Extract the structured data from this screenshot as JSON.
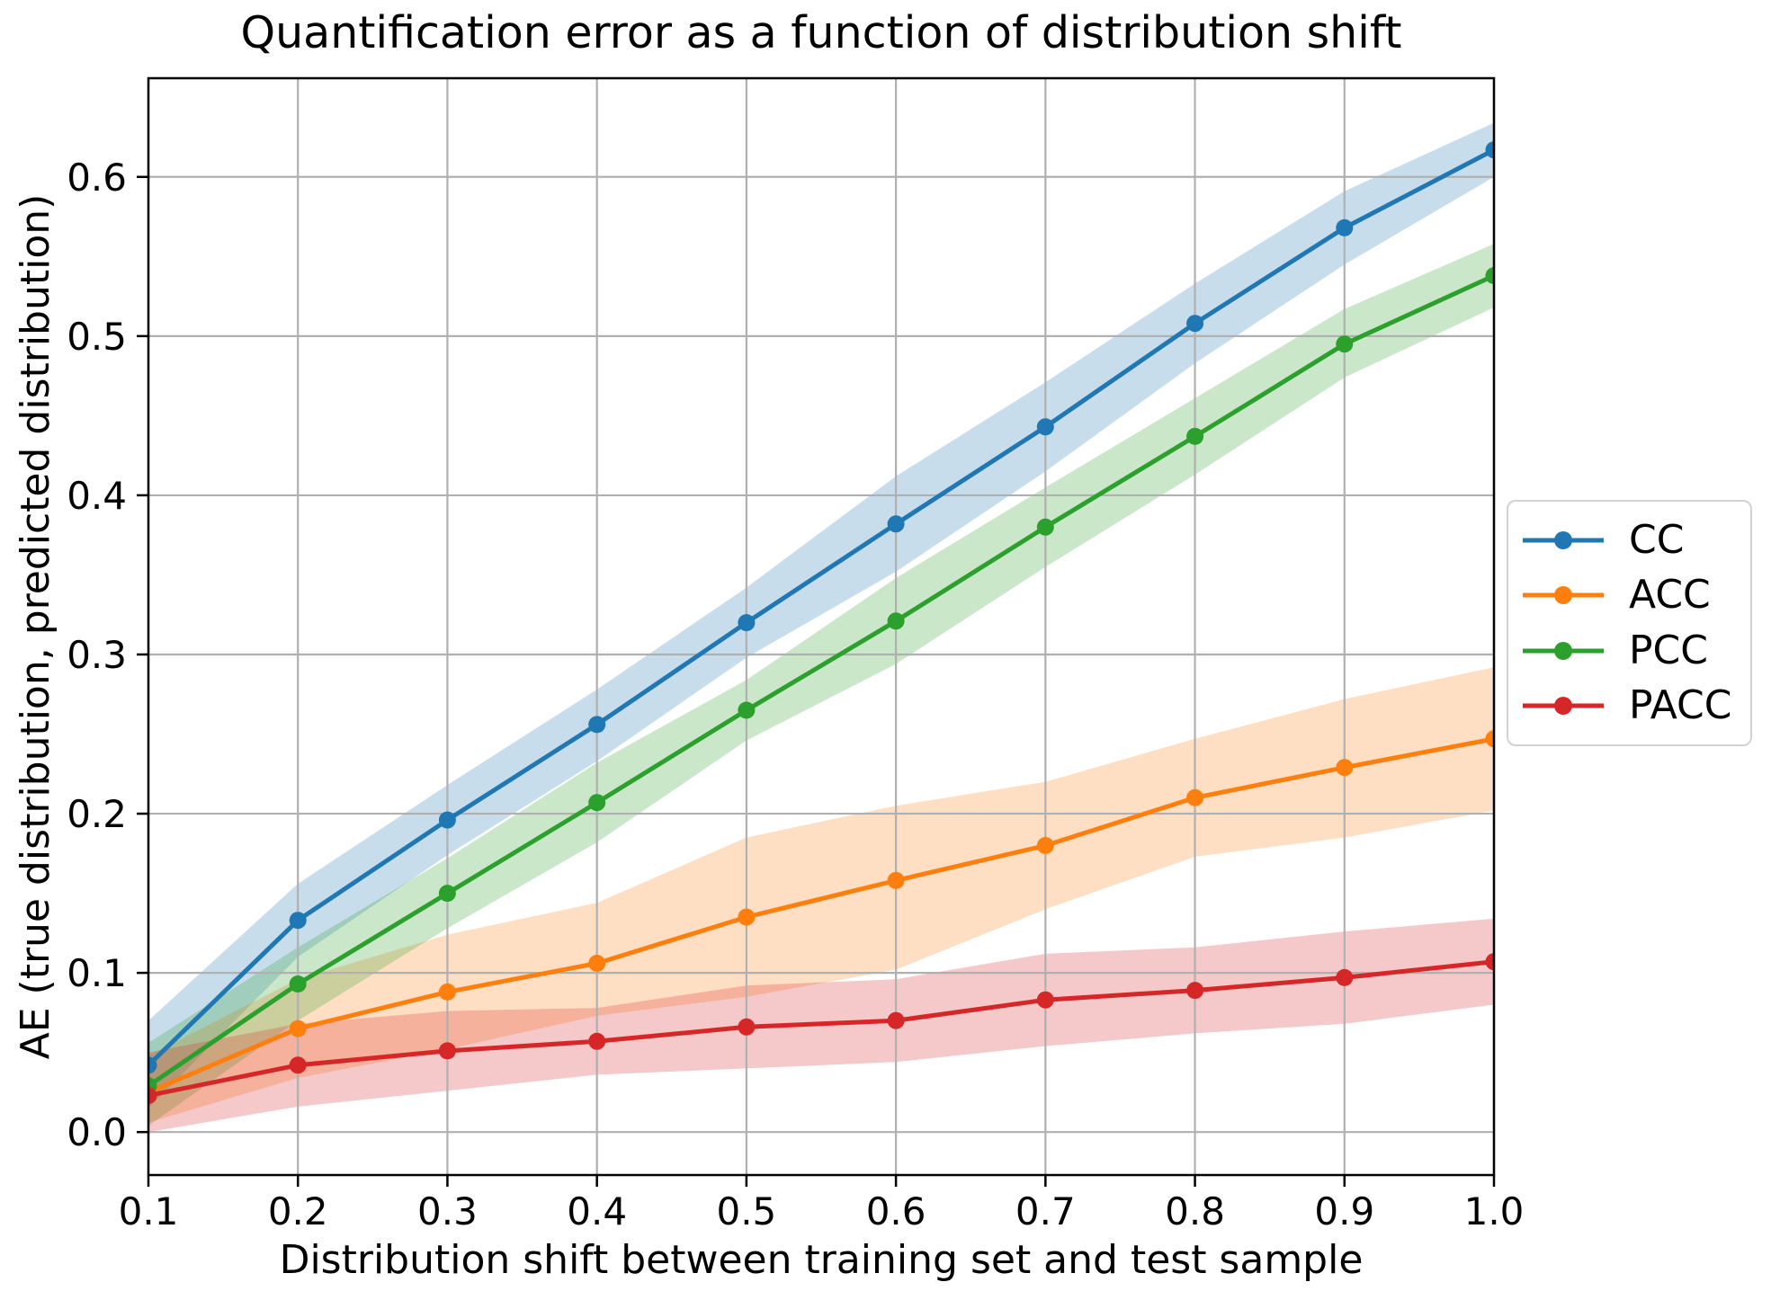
{
  "chart_data": {
    "type": "line",
    "title": "Quantification error as a function of distribution shift",
    "xlabel": "Distribution shift between training set and test sample",
    "ylabel": "AE (true distribution, predicted distribution)",
    "x": [
      0.1,
      0.2,
      0.3,
      0.4,
      0.5,
      0.6,
      0.7,
      0.8,
      0.9,
      1.0
    ],
    "xtick_labels": [
      "0.1",
      "0.2",
      "0.3",
      "0.4",
      "0.5",
      "0.6",
      "0.7",
      "0.8",
      "0.9",
      "1.0"
    ],
    "ytick_values": [
      0.0,
      0.1,
      0.2,
      0.3,
      0.4,
      0.5,
      0.6
    ],
    "ytick_labels": [
      "0.0",
      "0.1",
      "0.2",
      "0.3",
      "0.4",
      "0.5",
      "0.6"
    ],
    "xlim": [
      0.1,
      1.0
    ],
    "ylim": [
      -0.027,
      0.662
    ],
    "grid": true,
    "grid_color": "#b0b0b0",
    "spine_color": "#000000",
    "band_opacity": 0.25,
    "legend_position": "right-outside",
    "series": [
      {
        "name": "CC",
        "color": "#1f77b4",
        "values": [
          0.042,
          0.133,
          0.196,
          0.256,
          0.32,
          0.382,
          0.443,
          0.508,
          0.568,
          0.617
        ],
        "band_lo": [
          0.015,
          0.11,
          0.174,
          0.233,
          0.298,
          0.352,
          0.415,
          0.483,
          0.545,
          0.6
        ],
        "band_hi": [
          0.07,
          0.156,
          0.218,
          0.278,
          0.342,
          0.412,
          0.471,
          0.533,
          0.591,
          0.634
        ]
      },
      {
        "name": "ACC",
        "color": "#ff7f0e",
        "values": [
          0.025,
          0.065,
          0.088,
          0.106,
          0.135,
          0.158,
          0.18,
          0.21,
          0.229,
          0.247
        ],
        "band_lo": [
          0.006,
          0.034,
          0.052,
          0.073,
          0.085,
          0.102,
          0.14,
          0.173,
          0.185,
          0.202
        ],
        "band_hi": [
          0.048,
          0.096,
          0.124,
          0.144,
          0.185,
          0.205,
          0.22,
          0.247,
          0.272,
          0.292
        ]
      },
      {
        "name": "PCC",
        "color": "#2ca02c",
        "values": [
          0.029,
          0.093,
          0.15,
          0.207,
          0.265,
          0.321,
          0.38,
          0.437,
          0.495,
          0.538
        ],
        "band_lo": [
          0.004,
          0.07,
          0.128,
          0.182,
          0.246,
          0.294,
          0.355,
          0.413,
          0.474,
          0.518
        ],
        "band_hi": [
          0.056,
          0.116,
          0.172,
          0.232,
          0.284,
          0.348,
          0.405,
          0.461,
          0.517,
          0.558
        ]
      },
      {
        "name": "PACC",
        "color": "#d62728",
        "values": [
          0.023,
          0.042,
          0.051,
          0.057,
          0.066,
          0.07,
          0.083,
          0.089,
          0.097,
          0.107
        ],
        "band_lo": [
          0.0,
          0.016,
          0.026,
          0.036,
          0.04,
          0.044,
          0.054,
          0.062,
          0.068,
          0.08
        ],
        "band_hi": [
          0.05,
          0.068,
          0.076,
          0.078,
          0.092,
          0.096,
          0.112,
          0.116,
          0.126,
          0.134
        ]
      }
    ]
  }
}
